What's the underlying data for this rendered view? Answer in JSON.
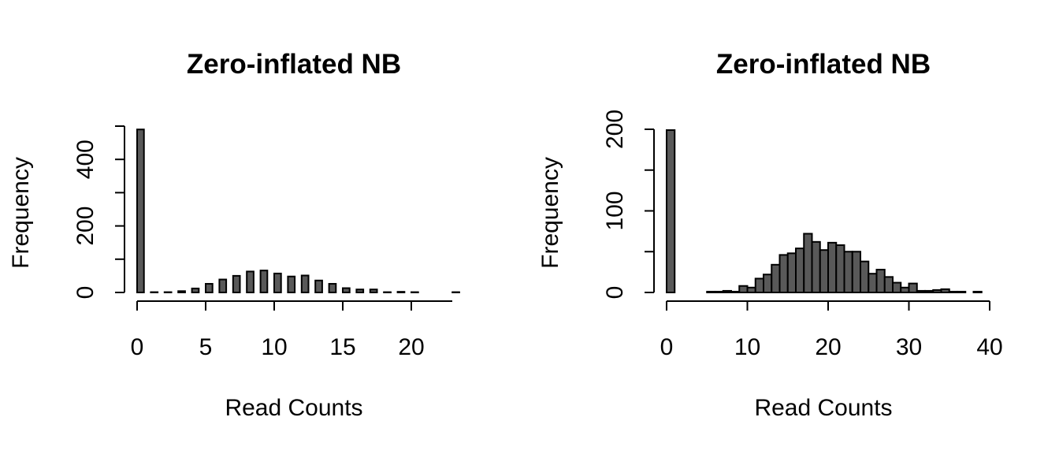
{
  "chart_data": [
    {
      "type": "bar",
      "title": "Zero-inflated NB",
      "xlabel": "Read Counts",
      "ylabel": "Frequency",
      "xlim": [
        0,
        23
      ],
      "ylim": [
        0,
        500
      ],
      "x_ticks": [
        0,
        5,
        10,
        15,
        20
      ],
      "y_ticks": [
        0,
        200,
        400
      ],
      "y_ticks_unlabeled": [
        100,
        300,
        500
      ],
      "grid": false,
      "bin_width": 0.5,
      "bins": [
        {
          "x": 0,
          "value": 490
        },
        {
          "x": 1,
          "value": 1
        },
        {
          "x": 2,
          "value": 1
        },
        {
          "x": 3,
          "value": 4
        },
        {
          "x": 4,
          "value": 12
        },
        {
          "x": 5,
          "value": 26
        },
        {
          "x": 6,
          "value": 39
        },
        {
          "x": 7,
          "value": 50
        },
        {
          "x": 8,
          "value": 63
        },
        {
          "x": 9,
          "value": 66
        },
        {
          "x": 10,
          "value": 57
        },
        {
          "x": 11,
          "value": 48
        },
        {
          "x": 12,
          "value": 51
        },
        {
          "x": 13,
          "value": 36
        },
        {
          "x": 14,
          "value": 26
        },
        {
          "x": 15,
          "value": 13
        },
        {
          "x": 16,
          "value": 9
        },
        {
          "x": 17,
          "value": 9
        },
        {
          "x": 18,
          "value": 1
        },
        {
          "x": 19,
          "value": 2
        },
        {
          "x": 20,
          "value": 1
        },
        {
          "x": 21,
          "value": 0
        },
        {
          "x": 22,
          "value": 0
        },
        {
          "x": 23,
          "value": 1
        }
      ]
    },
    {
      "type": "bar",
      "title": "Zero-inflated NB",
      "xlabel": "Read Counts",
      "ylabel": "Frequency",
      "xlim": [
        0,
        40
      ],
      "ylim": [
        0,
        200
      ],
      "x_ticks": [
        0,
        10,
        20,
        30,
        40
      ],
      "y_ticks": [
        0,
        100,
        200
      ],
      "y_ticks_unlabeled": [
        50,
        150
      ],
      "grid": false,
      "bin_width": 1,
      "bins": [
        {
          "x": 0,
          "value": 199
        },
        {
          "x": 1,
          "value": 0
        },
        {
          "x": 2,
          "value": 0
        },
        {
          "x": 3,
          "value": 0
        },
        {
          "x": 4,
          "value": 0
        },
        {
          "x": 5,
          "value": 1
        },
        {
          "x": 6,
          "value": 1
        },
        {
          "x": 7,
          "value": 2
        },
        {
          "x": 8,
          "value": 1
        },
        {
          "x": 9,
          "value": 8
        },
        {
          "x": 10,
          "value": 6
        },
        {
          "x": 11,
          "value": 17
        },
        {
          "x": 12,
          "value": 22
        },
        {
          "x": 13,
          "value": 34
        },
        {
          "x": 14,
          "value": 46
        },
        {
          "x": 15,
          "value": 48
        },
        {
          "x": 16,
          "value": 54
        },
        {
          "x": 17,
          "value": 72
        },
        {
          "x": 18,
          "value": 62
        },
        {
          "x": 19,
          "value": 52
        },
        {
          "x": 20,
          "value": 61
        },
        {
          "x": 21,
          "value": 58
        },
        {
          "x": 22,
          "value": 50
        },
        {
          "x": 23,
          "value": 50
        },
        {
          "x": 24,
          "value": 38
        },
        {
          "x": 25,
          "value": 23
        },
        {
          "x": 26,
          "value": 28
        },
        {
          "x": 27,
          "value": 19
        },
        {
          "x": 28,
          "value": 12
        },
        {
          "x": 29,
          "value": 6
        },
        {
          "x": 30,
          "value": 11
        },
        {
          "x": 31,
          "value": 2
        },
        {
          "x": 32,
          "value": 2
        },
        {
          "x": 33,
          "value": 3
        },
        {
          "x": 34,
          "value": 4
        },
        {
          "x": 35,
          "value": 1
        },
        {
          "x": 36,
          "value": 1
        },
        {
          "x": 37,
          "value": 0
        },
        {
          "x": 38,
          "value": 1
        }
      ]
    }
  ]
}
